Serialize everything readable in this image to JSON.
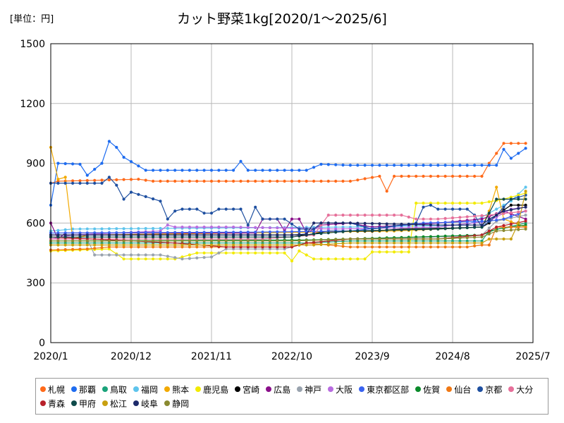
{
  "unit_label": "[単位：円]",
  "chart_data": {
    "type": "line",
    "title": "カット野菜1kg[2020/1～2025/6]",
    "xlabel": "",
    "ylabel": "",
    "x_start": "2020/1",
    "x_end": "2025/7",
    "x_ticks": [
      "2020/1",
      "2020/12",
      "2021/11",
      "2022/10",
      "2023/9",
      "2024/8",
      "2025/7"
    ],
    "ylim": [
      0,
      1500
    ],
    "y_ticks": [
      0,
      300,
      600,
      900,
      1200,
      1500
    ],
    "grid": true,
    "legend_position": "bottom",
    "series": [
      {
        "name": "札幌",
        "color": "#ff6a1a",
        "points": [
          [
            "2020/1",
            800
          ],
          [
            "2020/2",
            810
          ],
          [
            "2021/1",
            820
          ],
          [
            "2021/3",
            810
          ],
          [
            "2023/6",
            810
          ],
          [
            "2023/10",
            835
          ],
          [
            "2023/11",
            760
          ],
          [
            "2023/12",
            835
          ],
          [
            "2024/12",
            835
          ],
          [
            "2025/1",
            900
          ],
          [
            "2025/2",
            950
          ],
          [
            "2025/3",
            1000
          ],
          [
            "2025/6",
            1000
          ]
        ]
      },
      {
        "name": "那覇",
        "color": "#1e6cf0",
        "points": [
          [
            "2020/1",
            690
          ],
          [
            "2020/2",
            900
          ],
          [
            "2020/5",
            895
          ],
          [
            "2020/6",
            840
          ],
          [
            "2020/8",
            900
          ],
          [
            "2020/9",
            1010
          ],
          [
            "2020/10",
            980
          ],
          [
            "2020/11",
            930
          ],
          [
            "2021/2",
            865
          ],
          [
            "2022/2",
            865
          ],
          [
            "2022/3",
            910
          ],
          [
            "2022/4",
            865
          ],
          [
            "2022/12",
            865
          ],
          [
            "2023/2",
            895
          ],
          [
            "2023/6",
            890
          ],
          [
            "2025/1",
            890
          ],
          [
            "2025/2",
            890
          ],
          [
            "2025/3",
            970
          ],
          [
            "2025/4",
            925
          ],
          [
            "2025/6",
            975
          ]
        ]
      },
      {
        "name": "鳥取",
        "color": "#1aa37a",
        "points": [
          [
            "2020/1",
            500
          ],
          [
            "2022/12",
            500
          ],
          [
            "2023/6",
            510
          ],
          [
            "2024/12",
            510
          ],
          [
            "2025/1",
            560
          ],
          [
            "2025/6",
            600
          ]
        ]
      },
      {
        "name": "福岡",
        "color": "#5ec4ec",
        "points": [
          [
            "2020/1",
            560
          ],
          [
            "2020/4",
            570
          ],
          [
            "2023/6",
            580
          ],
          [
            "2024/10",
            590
          ],
          [
            "2025/1",
            650
          ],
          [
            "2025/4",
            710
          ],
          [
            "2025/6",
            780
          ]
        ]
      },
      {
        "name": "熊本",
        "color": "#f2a900",
        "points": [
          [
            "2020/1",
            980
          ],
          [
            "2020/2",
            820
          ],
          [
            "2020/3",
            830
          ],
          [
            "2020/4",
            520
          ],
          [
            "2020/6",
            540
          ],
          [
            "2023/12",
            560
          ],
          [
            "2024/6",
            570
          ],
          [
            "2024/12",
            580
          ],
          [
            "2025/1",
            660
          ],
          [
            "2025/2",
            780
          ],
          [
            "2025/3",
            620
          ],
          [
            "2025/6",
            580
          ]
        ]
      },
      {
        "name": "鹿児島",
        "color": "#f2ea00",
        "points": [
          [
            "2020/1",
            460
          ],
          [
            "2020/9",
            470
          ],
          [
            "2020/11",
            420
          ],
          [
            "2021/6",
            420
          ],
          [
            "2021/9",
            450
          ],
          [
            "2022/9",
            450
          ],
          [
            "2022/10",
            410
          ],
          [
            "2022/11",
            460
          ],
          [
            "2023/1",
            420
          ],
          [
            "2023/8",
            420
          ],
          [
            "2023/9",
            455
          ],
          [
            "2024/2",
            455
          ],
          [
            "2024/3",
            700
          ],
          [
            "2024/12",
            700
          ],
          [
            "2025/3",
            720
          ],
          [
            "2025/6",
            750
          ]
        ]
      },
      {
        "name": "宮崎",
        "color": "#000000",
        "points": [
          [
            "2020/1",
            540
          ],
          [
            "2021/2",
            540
          ],
          [
            "2022/10",
            540
          ],
          [
            "2022/12",
            540
          ],
          [
            "2023/3",
            560
          ],
          [
            "2023/9",
            560
          ],
          [
            "2024/1",
            570
          ],
          [
            "2024/8",
            575
          ],
          [
            "2024/12",
            580
          ],
          [
            "2025/1",
            600
          ],
          [
            "2025/2",
            640
          ],
          [
            "2025/4",
            690
          ],
          [
            "2025/6",
            690
          ]
        ]
      },
      {
        "name": "広島",
        "color": "#8a0f8a",
        "points": [
          [
            "2020/1",
            600
          ],
          [
            "2020/2",
            520
          ],
          [
            "2020/3",
            550
          ],
          [
            "2022/5",
            550
          ],
          [
            "2022/6",
            620
          ],
          [
            "2022/8",
            620
          ],
          [
            "2022/9",
            560
          ],
          [
            "2022/10",
            620
          ],
          [
            "2022/11",
            620
          ],
          [
            "2022/12",
            550
          ],
          [
            "2023/2",
            590
          ],
          [
            "2023/6",
            600
          ],
          [
            "2023/9",
            580
          ],
          [
            "2024/6",
            600
          ],
          [
            "2024/12",
            620
          ],
          [
            "2025/3",
            660
          ],
          [
            "2025/6",
            620
          ]
        ]
      },
      {
        "name": "神戸",
        "color": "#99a3ae",
        "points": [
          [
            "2020/1",
            520
          ],
          [
            "2020/6",
            520
          ],
          [
            "2020/7",
            440
          ],
          [
            "2021/1",
            440
          ],
          [
            "2021/4",
            440
          ],
          [
            "2021/7",
            420
          ],
          [
            "2021/11",
            430
          ],
          [
            "2022/1",
            470
          ],
          [
            "2022/9",
            470
          ],
          [
            "2022/12",
            500
          ],
          [
            "2023/6",
            520
          ],
          [
            "2024/6",
            530
          ],
          [
            "2024/12",
            540
          ],
          [
            "2025/2",
            610
          ],
          [
            "2025/6",
            640
          ]
        ]
      },
      {
        "name": "大阪",
        "color": "#b86ce0",
        "points": [
          [
            "2020/1",
            520
          ],
          [
            "2020/4",
            540
          ],
          [
            "2021/4",
            560
          ],
          [
            "2021/5",
            590
          ],
          [
            "2021/6",
            580
          ],
          [
            "2022/2",
            580
          ],
          [
            "2023/4",
            570
          ],
          [
            "2024/6",
            580
          ],
          [
            "2025/1",
            610
          ],
          [
            "2025/4",
            670
          ],
          [
            "2025/6",
            680
          ]
        ]
      },
      {
        "name": "東京都区部",
        "color": "#3a63f0",
        "points": [
          [
            "2020/1",
            550
          ],
          [
            "2022/6",
            555
          ],
          [
            "2023/6",
            560
          ],
          [
            "2024/4",
            600
          ],
          [
            "2025/1",
            610
          ],
          [
            "2025/3",
            620
          ],
          [
            "2025/6",
            660
          ]
        ]
      },
      {
        "name": "佐賀",
        "color": "#0a8a2a",
        "points": [
          [
            "2020/1",
            510
          ],
          [
            "2022/12",
            515
          ],
          [
            "2023/6",
            520
          ],
          [
            "2024/12",
            540
          ],
          [
            "2025/2",
            570
          ],
          [
            "2025/6",
            590
          ]
        ]
      },
      {
        "name": "仙台",
        "color": "#f07814",
        "points": [
          [
            "2020/1",
            465
          ],
          [
            "2020/6",
            470
          ],
          [
            "2020/9",
            480
          ],
          [
            "2021/3",
            480
          ],
          [
            "2022/10",
            480
          ],
          [
            "2022/12",
            500
          ],
          [
            "2023/6",
            480
          ],
          [
            "2024/6",
            480
          ],
          [
            "2024/10",
            480
          ],
          [
            "2024/12",
            490
          ],
          [
            "2025/1",
            490
          ],
          [
            "2025/2",
            580
          ],
          [
            "2025/6",
            580
          ]
        ]
      },
      {
        "name": "京都",
        "color": "#1e4fa0",
        "points": [
          [
            "2020/1",
            800
          ],
          [
            "2020/8",
            800
          ],
          [
            "2020/9",
            830
          ],
          [
            "2020/10",
            790
          ],
          [
            "2020/11",
            720
          ],
          [
            "2020/12",
            755
          ],
          [
            "2021/4",
            710
          ],
          [
            "2021/5",
            620
          ],
          [
            "2021/6",
            660
          ],
          [
            "2021/7",
            670
          ],
          [
            "2021/9",
            670
          ],
          [
            "2021/10",
            650
          ],
          [
            "2021/11",
            650
          ],
          [
            "2021/12",
            670
          ],
          [
            "2022/3",
            670
          ],
          [
            "2022/4",
            590
          ],
          [
            "2022/5",
            680
          ],
          [
            "2022/6",
            620
          ],
          [
            "2022/9",
            620
          ],
          [
            "2022/11",
            570
          ],
          [
            "2023/1",
            570
          ],
          [
            "2023/2",
            600
          ],
          [
            "2023/6",
            600
          ],
          [
            "2023/9",
            570
          ],
          [
            "2024/3",
            600
          ],
          [
            "2024/4",
            680
          ],
          [
            "2024/5",
            690
          ],
          [
            "2024/6",
            670
          ],
          [
            "2024/10",
            670
          ],
          [
            "2024/11",
            640
          ],
          [
            "2024/12",
            580
          ],
          [
            "2025/2",
            640
          ],
          [
            "2025/4",
            720
          ],
          [
            "2025/6",
            740
          ]
        ]
      },
      {
        "name": "大分",
        "color": "#e6709a",
        "points": [
          [
            "2020/1",
            520
          ],
          [
            "2021/1",
            520
          ],
          [
            "2022/6",
            520
          ],
          [
            "2023/1",
            540
          ],
          [
            "2023/3",
            640
          ],
          [
            "2024/1",
            640
          ],
          [
            "2024/3",
            620
          ],
          [
            "2024/6",
            620
          ],
          [
            "2025/1",
            640
          ],
          [
            "2025/6",
            660
          ]
        ]
      },
      {
        "name": "青森",
        "color": "#b8202a",
        "points": [
          [
            "2020/1",
            530
          ],
          [
            "2021/6",
            500
          ],
          [
            "2022/1",
            480
          ],
          [
            "2022/10",
            480
          ],
          [
            "2022/12",
            500
          ],
          [
            "2023/6",
            520
          ],
          [
            "2024/6",
            520
          ],
          [
            "2024/12",
            540
          ],
          [
            "2025/2",
            580
          ],
          [
            "2025/6",
            610
          ]
        ]
      },
      {
        "name": "甲府",
        "color": "#0e4a4a",
        "points": [
          [
            "2020/1",
            530
          ],
          [
            "2021/1",
            530
          ],
          [
            "2022/10",
            530
          ],
          [
            "2023/1",
            545
          ],
          [
            "2023/6",
            560
          ],
          [
            "2024/6",
            570
          ],
          [
            "2024/12",
            580
          ],
          [
            "2025/2",
            720
          ],
          [
            "2025/6",
            720
          ]
        ]
      },
      {
        "name": "松江",
        "color": "#c8a010",
        "points": [
          [
            "2020/1",
            490
          ],
          [
            "2021/1",
            490
          ],
          [
            "2022/10",
            490
          ],
          [
            "2023/1",
            490
          ],
          [
            "2023/6",
            500
          ],
          [
            "2024/6",
            500
          ],
          [
            "2024/12",
            500
          ],
          [
            "2025/1",
            520
          ],
          [
            "2025/4",
            520
          ],
          [
            "2025/5",
            600
          ],
          [
            "2025/6",
            760
          ]
        ]
      },
      {
        "name": "岐阜",
        "color": "#1c2a6a",
        "points": [
          [
            "2020/1",
            540
          ],
          [
            "2021/6",
            540
          ],
          [
            "2022/10",
            540
          ],
          [
            "2022/12",
            545
          ],
          [
            "2023/1",
            600
          ],
          [
            "2023/6",
            600
          ],
          [
            "2024/6",
            590
          ],
          [
            "2024/12",
            590
          ],
          [
            "2025/1",
            620
          ],
          [
            "2025/3",
            660
          ],
          [
            "2025/6",
            680
          ]
        ]
      },
      {
        "name": "静岡",
        "color": "#8a8a30",
        "points": [
          [
            "2020/1",
            510
          ],
          [
            "2021/1",
            510
          ],
          [
            "2022/10",
            510
          ],
          [
            "2023/6",
            520
          ],
          [
            "2024/6",
            520
          ],
          [
            "2024/12",
            530
          ],
          [
            "2025/2",
            560
          ],
          [
            "2025/6",
            570
          ]
        ]
      }
    ]
  }
}
